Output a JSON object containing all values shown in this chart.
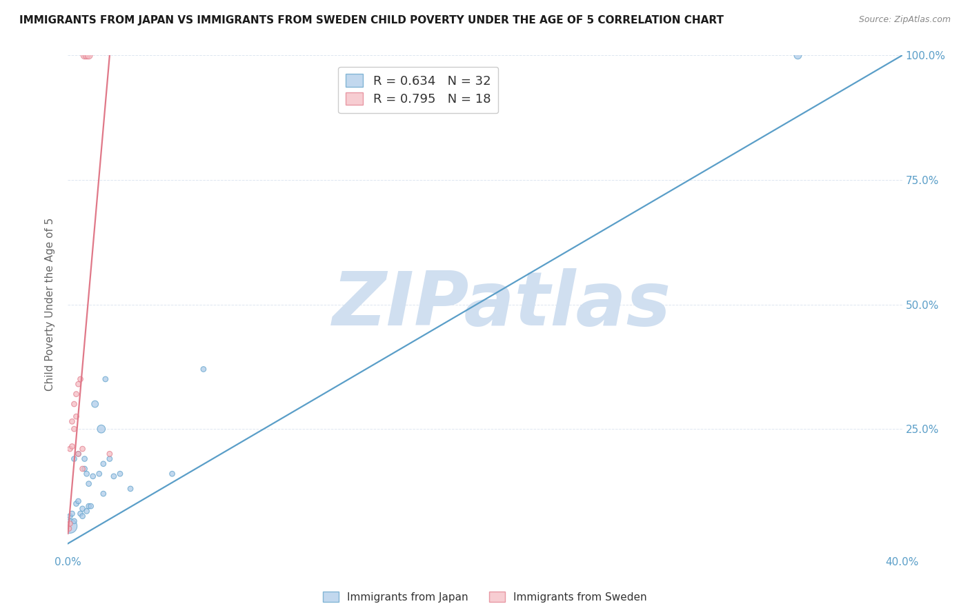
{
  "title": "IMMIGRANTS FROM JAPAN VS IMMIGRANTS FROM SWEDEN CHILD POVERTY UNDER THE AGE OF 5 CORRELATION CHART",
  "source": "Source: ZipAtlas.com",
  "ylabel": "Child Poverty Under the Age of 5",
  "xlim": [
    0.0,
    0.4
  ],
  "ylim": [
    0.0,
    1.0
  ],
  "xtick_positions": [
    0.0,
    0.05,
    0.1,
    0.15,
    0.2,
    0.25,
    0.3,
    0.35,
    0.4
  ],
  "xtick_labels": [
    "0.0%",
    "",
    "",
    "",
    "",
    "",
    "",
    "",
    "40.0%"
  ],
  "ytick_positions": [
    0.0,
    0.25,
    0.5,
    0.75,
    1.0
  ],
  "ytick_labels_right": [
    "",
    "25.0%",
    "50.0%",
    "75.0%",
    "100.0%"
  ],
  "japan_color": "#a8c8e8",
  "japan_edge_color": "#5a9ec8",
  "sweden_color": "#f4b8c0",
  "sweden_edge_color": "#e07888",
  "japan_line_color": "#5a9ec8",
  "sweden_line_color": "#e07888",
  "japan_R": "0.634",
  "japan_N": "32",
  "sweden_R": "0.795",
  "sweden_N": "18",
  "watermark_text": "ZIPatlas",
  "watermark_color": "#d0dff0",
  "japan_scatter_x": [
    0.001,
    0.001,
    0.002,
    0.003,
    0.003,
    0.004,
    0.005,
    0.005,
    0.006,
    0.007,
    0.007,
    0.008,
    0.008,
    0.009,
    0.009,
    0.01,
    0.01,
    0.011,
    0.012,
    0.013,
    0.015,
    0.016,
    0.017,
    0.017,
    0.018,
    0.02,
    0.022,
    0.025,
    0.03,
    0.05,
    0.065,
    0.35
  ],
  "japan_scatter_y": [
    0.055,
    0.075,
    0.08,
    0.065,
    0.19,
    0.1,
    0.105,
    0.2,
    0.08,
    0.075,
    0.09,
    0.17,
    0.19,
    0.085,
    0.16,
    0.14,
    0.095,
    0.095,
    0.155,
    0.3,
    0.16,
    0.25,
    0.18,
    0.12,
    0.35,
    0.19,
    0.155,
    0.16,
    0.13,
    0.16,
    0.37,
    1.0
  ],
  "japan_scatter_s": [
    220,
    30,
    30,
    30,
    30,
    30,
    30,
    30,
    30,
    30,
    30,
    30,
    30,
    30,
    30,
    30,
    30,
    30,
    30,
    50,
    30,
    70,
    30,
    30,
    30,
    30,
    30,
    30,
    30,
    30,
    30,
    60
  ],
  "sweden_scatter_x": [
    0.0005,
    0.001,
    0.001,
    0.002,
    0.002,
    0.003,
    0.003,
    0.004,
    0.004,
    0.005,
    0.005,
    0.006,
    0.007,
    0.007,
    0.008,
    0.009,
    0.01,
    0.02
  ],
  "sweden_scatter_y": [
    0.05,
    0.06,
    0.21,
    0.215,
    0.265,
    0.25,
    0.3,
    0.275,
    0.32,
    0.34,
    0.2,
    0.35,
    0.21,
    0.17,
    1.0,
    1.0,
    1.0,
    0.2
  ],
  "sweden_scatter_s": [
    30,
    30,
    30,
    30,
    30,
    30,
    30,
    30,
    30,
    30,
    30,
    30,
    30,
    30,
    60,
    60,
    60,
    30
  ],
  "japan_line_x": [
    0.0,
    0.4
  ],
  "japan_line_y": [
    0.02,
    1.0
  ],
  "sweden_line_x": [
    0.0,
    0.02
  ],
  "sweden_line_y": [
    0.04,
    1.0
  ],
  "legend_R_color": "#4a7ab0",
  "legend_N_color": "#e05060",
  "legend_japan_label": "R = 0.634   N = 32",
  "legend_sweden_label": "R = 0.795   N = 18",
  "bottom_legend_japan": "Immigrants from Japan",
  "bottom_legend_sweden": "Immigrants from Sweden",
  "title_fontsize": 11,
  "axis_label_color": "#5a9ec8",
  "grid_color": "#dde6f0",
  "background_color": "#ffffff"
}
